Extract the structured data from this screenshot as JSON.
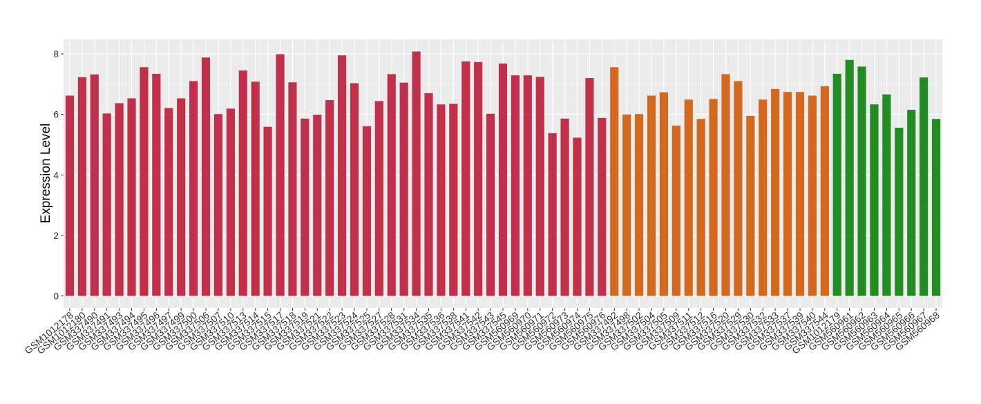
{
  "chart_data": {
    "type": "bar",
    "title": "",
    "xlabel": "",
    "ylabel": "Expression Level",
    "ylim": [
      0,
      8.3
    ],
    "yticks": [
      0,
      2,
      4,
      6,
      8
    ],
    "grid": true,
    "legend": "none",
    "group_colors": [
      "#C1304A",
      "#D2691E",
      "#228B22"
    ],
    "categories": [
      "GSM1012178",
      "GSM1012180",
      "GSM337490",
      "GSM337491",
      "GSM337493",
      "GSM337494",
      "GSM337495",
      "GSM337496",
      "GSM337497",
      "GSM337499",
      "GSM337500",
      "GSM337506",
      "GSM337507",
      "GSM337510",
      "GSM337513",
      "GSM337514",
      "GSM337515",
      "GSM337517",
      "GSM337518",
      "GSM337519",
      "GSM337521",
      "GSM337522",
      "GSM337523",
      "GSM337524",
      "GSM337525",
      "GSM337527",
      "GSM337528",
      "GSM337531",
      "GSM337534",
      "GSM337535",
      "GSM337536",
      "GSM337538",
      "GSM337541",
      "GSM337542",
      "GSM337543",
      "GSM337545",
      "GSM560969",
      "GSM560970",
      "GSM560971",
      "GSM560972",
      "GSM560973",
      "GSM560974",
      "GSM560975",
      "GSM560976",
      "GSM337492",
      "GSM337498",
      "GSM337502",
      "GSM337504",
      "GSM337505",
      "GSM337509",
      "GSM337511",
      "GSM337512",
      "GSM337516",
      "GSM337520",
      "GSM337529",
      "GSM337530",
      "GSM337532",
      "GSM337533",
      "GSM337537",
      "GSM337539",
      "GSM337540",
      "GSM337544",
      "GSM1012179",
      "GSM560961",
      "GSM560962",
      "GSM560963",
      "GSM560964",
      "GSM560965",
      "GSM560966",
      "GSM560967",
      "GSM560968"
    ],
    "values": [
      6.62,
      7.23,
      7.32,
      6.03,
      6.37,
      6.53,
      7.56,
      7.34,
      6.21,
      6.53,
      7.1,
      7.88,
      6.01,
      6.19,
      7.45,
      7.08,
      5.59,
      7.99,
      7.06,
      5.86,
      5.99,
      6.47,
      7.95,
      7.03,
      5.61,
      6.44,
      7.33,
      7.05,
      8.08,
      6.7,
      6.33,
      6.35,
      7.75,
      7.73,
      6.02,
      7.68,
      7.29,
      7.29,
      7.24,
      5.38,
      5.86,
      5.23,
      7.2,
      5.88,
      7.56,
      6.0,
      6.01,
      6.62,
      6.73,
      5.63,
      6.49,
      5.85,
      6.51,
      7.33,
      7.1,
      5.95,
      6.49,
      6.84,
      6.74,
      6.74,
      6.62,
      6.93,
      7.34,
      7.8,
      7.58,
      6.33,
      6.66,
      5.56,
      6.15,
      7.22,
      5.85
    ],
    "groups": [
      0,
      0,
      0,
      0,
      0,
      0,
      0,
      0,
      0,
      0,
      0,
      0,
      0,
      0,
      0,
      0,
      0,
      0,
      0,
      0,
      0,
      0,
      0,
      0,
      0,
      0,
      0,
      0,
      0,
      0,
      0,
      0,
      0,
      0,
      0,
      0,
      0,
      0,
      0,
      0,
      0,
      0,
      0,
      0,
      1,
      1,
      1,
      1,
      1,
      1,
      1,
      1,
      1,
      1,
      1,
      1,
      1,
      1,
      1,
      1,
      1,
      1,
      2,
      2,
      2,
      2,
      2,
      2,
      2,
      2,
      2
    ]
  }
}
